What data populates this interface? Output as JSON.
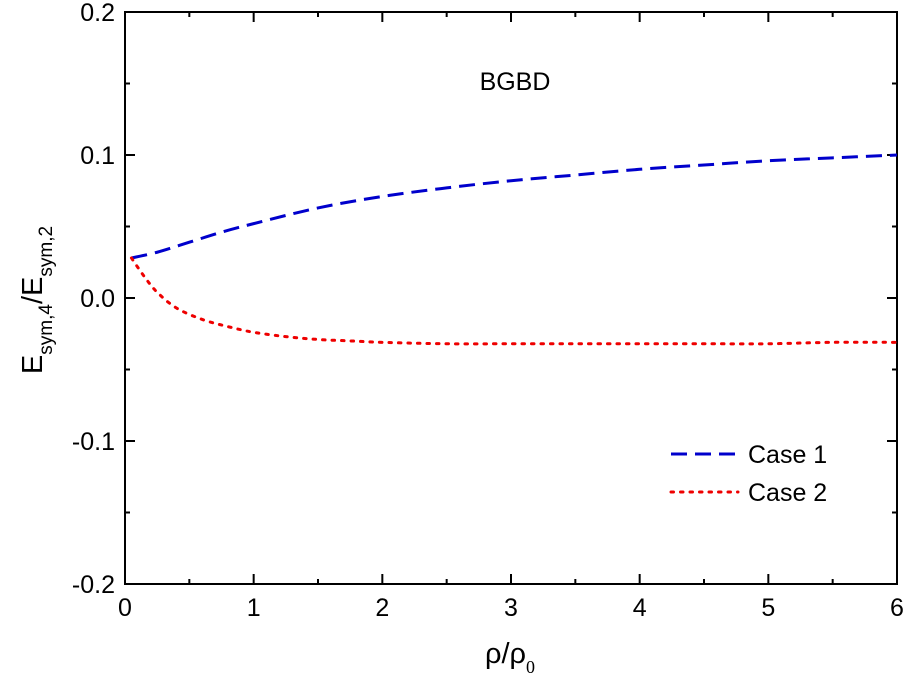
{
  "chart_data": {
    "type": "line",
    "annotation": "BGBD",
    "xlabel": {
      "main": "ρ/ρ",
      "sub": "0"
    },
    "ylabel": {
      "e1": "E",
      "sub1": "sym,4",
      "slash": "/E",
      "sub2": "sym,2"
    },
    "xlim": [
      0,
      6
    ],
    "ylim": [
      -0.2,
      0.2
    ],
    "xticks": [
      0,
      1,
      2,
      3,
      4,
      5,
      6
    ],
    "xtick_labels": [
      "0",
      "1",
      "2",
      "3",
      "4",
      "5",
      "6"
    ],
    "yticks": [
      -0.2,
      -0.1,
      0.0,
      0.1,
      0.2
    ],
    "ytick_labels": [
      "-0.2",
      "-0.1",
      "0.0",
      "0.1",
      "0.2"
    ],
    "grid": false,
    "legend_position": "bottom-right",
    "series": [
      {
        "name": "Case 1",
        "color": "#0000cc",
        "style": "dashed",
        "x": [
          0.05,
          0.25,
          0.5,
          0.75,
          1.0,
          1.5,
          2.0,
          2.5,
          3.0,
          3.5,
          4.0,
          4.5,
          5.0,
          5.5,
          6.0
        ],
        "y": [
          0.028,
          0.032,
          0.039,
          0.046,
          0.052,
          0.063,
          0.071,
          0.077,
          0.082,
          0.086,
          0.09,
          0.093,
          0.096,
          0.098,
          0.1
        ]
      },
      {
        "name": "Case 2",
        "color": "#ee0000",
        "style": "dotted",
        "x": [
          0.05,
          0.15,
          0.25,
          0.4,
          0.6,
          0.8,
          1.0,
          1.25,
          1.5,
          1.75,
          2.0,
          2.5,
          3.0,
          3.5,
          4.0,
          4.5,
          5.0,
          5.5,
          6.0
        ],
        "y": [
          0.028,
          0.015,
          0.004,
          -0.007,
          -0.015,
          -0.02,
          -0.024,
          -0.027,
          -0.029,
          -0.03,
          -0.031,
          -0.032,
          -0.032,
          -0.032,
          -0.032,
          -0.032,
          -0.032,
          -0.031,
          -0.031
        ]
      }
    ]
  }
}
